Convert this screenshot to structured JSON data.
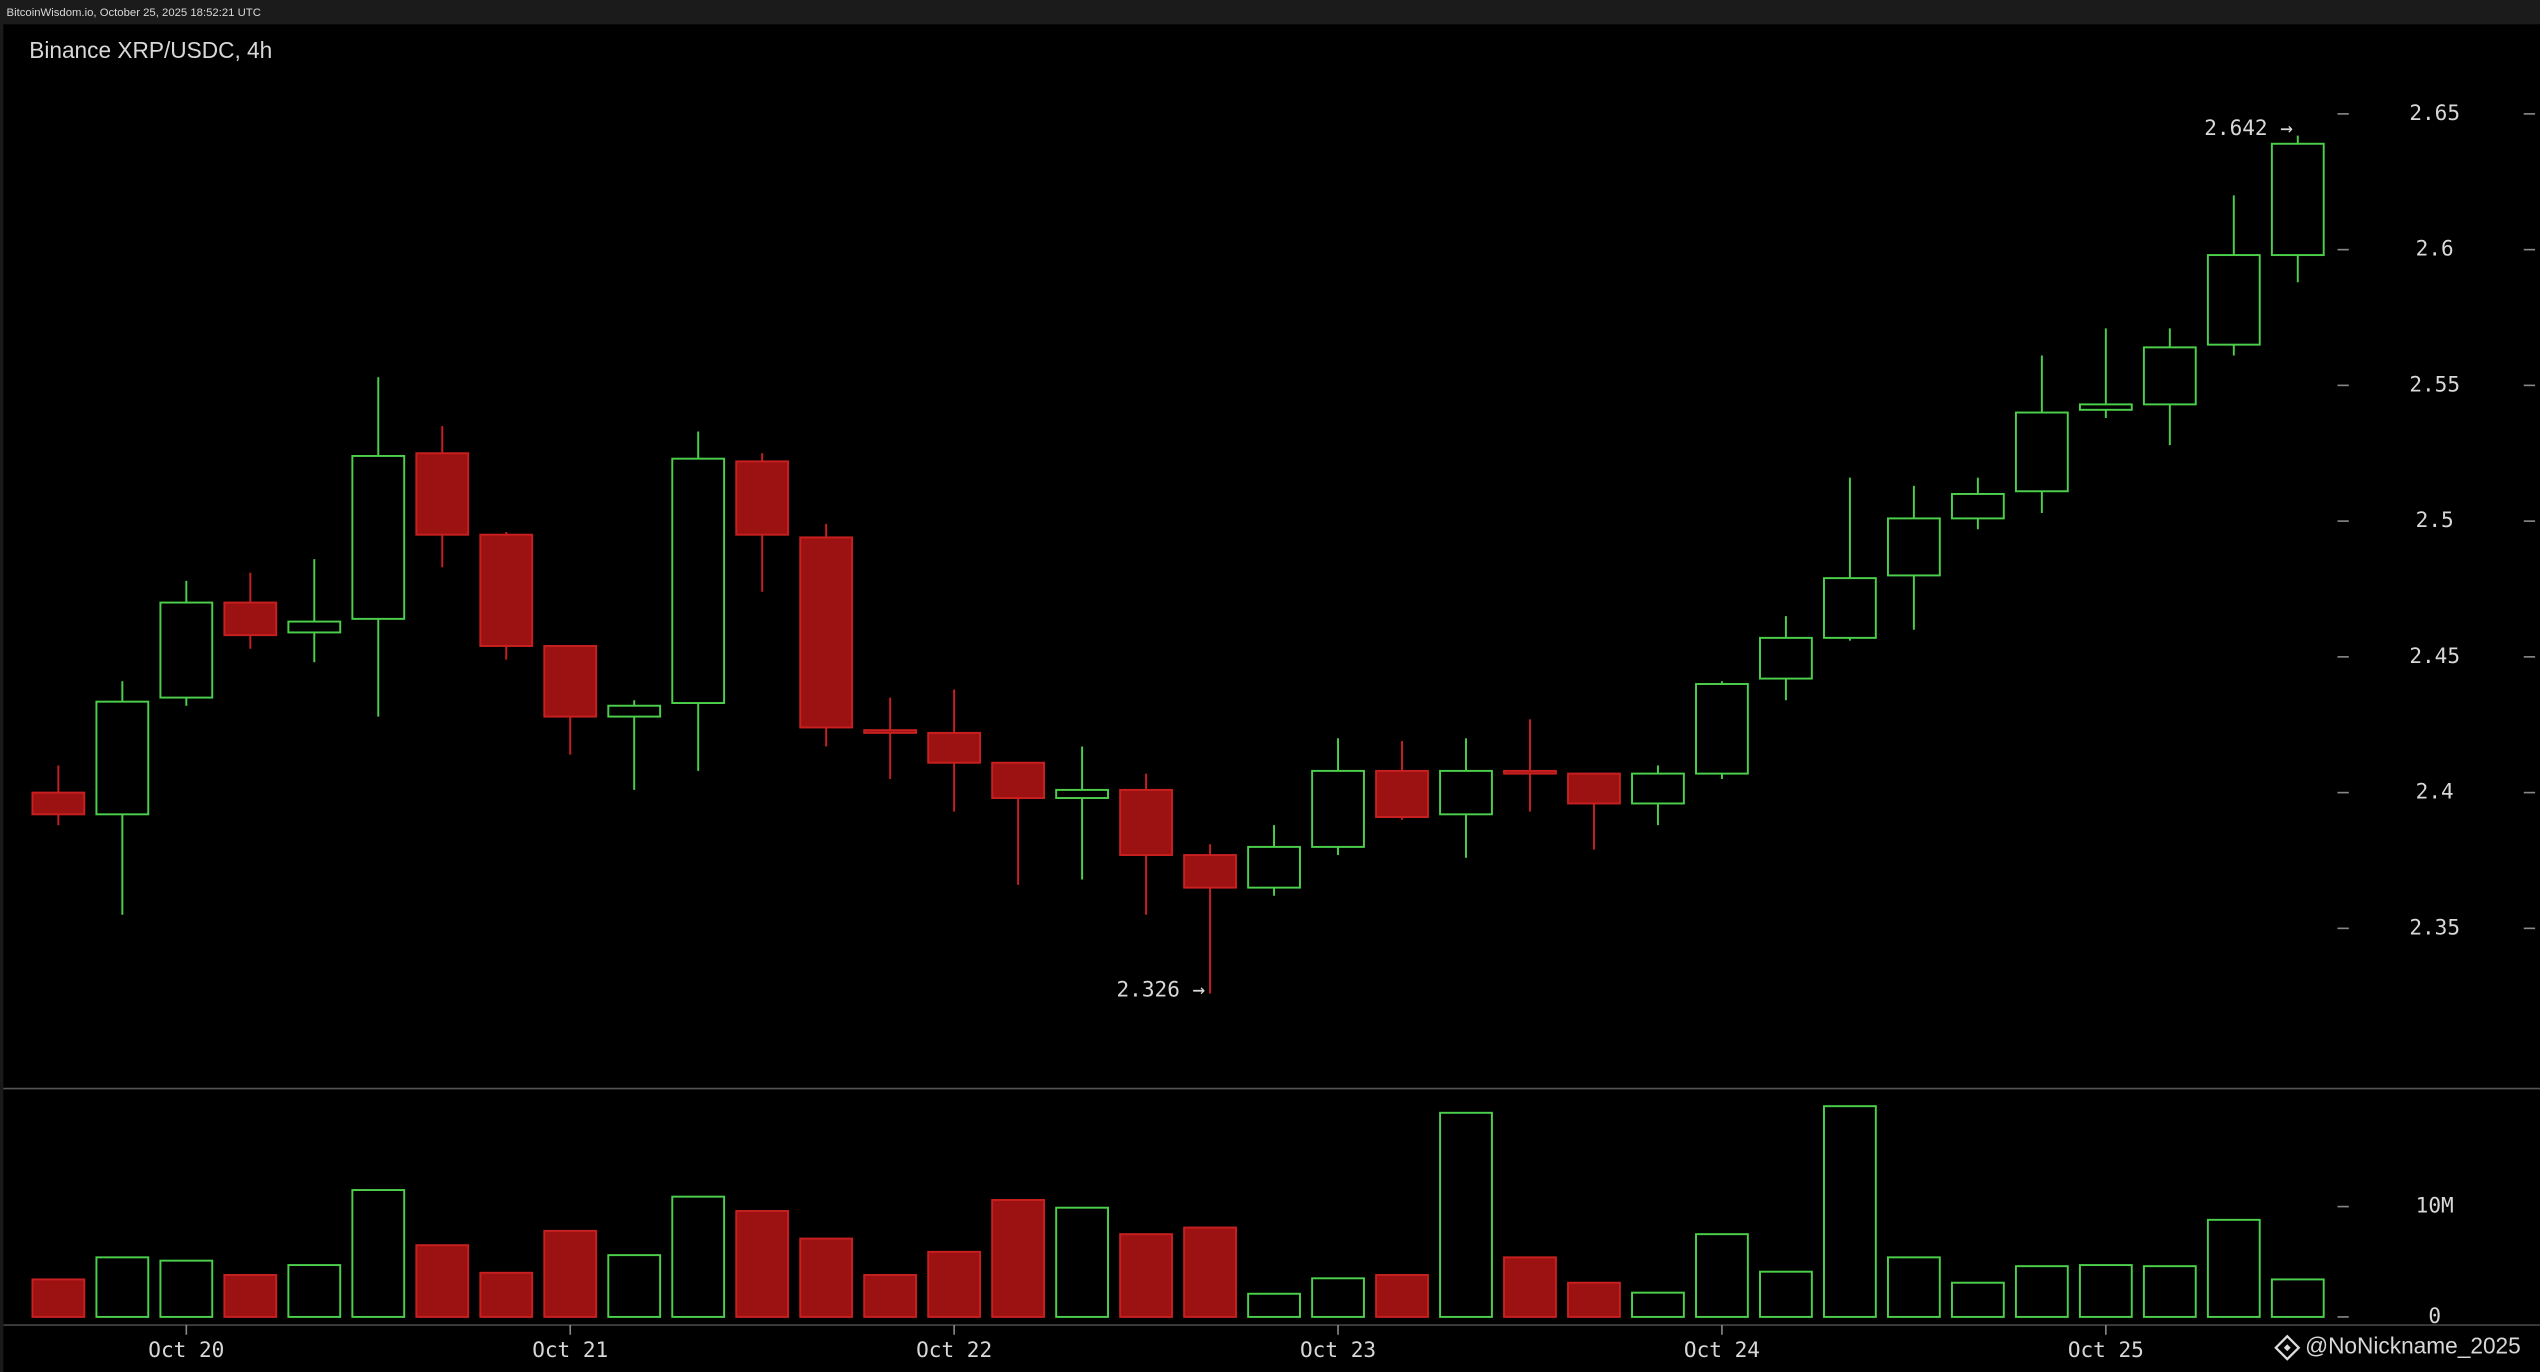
{
  "header": "BitcoinWisdom.io, October 25, 2025 18:52:21 UTC",
  "watermark": "@NoNickname_2025",
  "chart_data": {
    "type": "candlestick",
    "title": "Binance XRP/USDC, 4h",
    "categories": [
      null,
      null,
      "Oct 20",
      null,
      null,
      null,
      null,
      null,
      "Oct 21",
      null,
      null,
      null,
      null,
      null,
      "Oct 22",
      null,
      null,
      null,
      null,
      null,
      "Oct 23",
      null,
      null,
      null,
      null,
      null,
      "Oct 24",
      null,
      null,
      null,
      null,
      null,
      "Oct 25",
      null,
      null,
      null
    ],
    "open": [
      2.4,
      2.392,
      2.435,
      2.47,
      2.459,
      2.464,
      2.525,
      2.495,
      2.454,
      2.428,
      2.433,
      2.522,
      2.494,
      2.423,
      2.422,
      2.411,
      2.398,
      2.401,
      2.377,
      2.365,
      2.38,
      2.408,
      2.392,
      2.408,
      2.407,
      2.396,
      2.407,
      2.442,
      2.457,
      2.48,
      2.501,
      2.511,
      2.541,
      2.543,
      2.565,
      2.598
    ],
    "high": [
      2.41,
      2.441,
      2.478,
      2.481,
      2.486,
      2.553,
      2.535,
      2.496,
      2.454,
      2.434,
      2.533,
      2.525,
      2.499,
      2.435,
      2.438,
      2.411,
      2.417,
      2.407,
      2.381,
      2.388,
      2.42,
      2.419,
      2.42,
      2.427,
      2.407,
      2.41,
      2.441,
      2.465,
      2.516,
      2.513,
      2.516,
      2.561,
      2.571,
      2.571,
      2.62,
      2.642
    ],
    "low": [
      2.388,
      2.355,
      2.432,
      2.453,
      2.448,
      2.428,
      2.483,
      2.449,
      2.414,
      2.401,
      2.408,
      2.474,
      2.417,
      2.405,
      2.393,
      2.366,
      2.368,
      2.355,
      2.326,
      2.362,
      2.377,
      2.39,
      2.376,
      2.393,
      2.379,
      2.388,
      2.405,
      2.434,
      2.456,
      2.46,
      2.497,
      2.503,
      2.538,
      2.528,
      2.561,
      2.588
    ],
    "close": [
      2.392,
      2.4335,
      2.47,
      2.458,
      2.463,
      2.524,
      2.495,
      2.454,
      2.428,
      2.432,
      2.523,
      2.495,
      2.424,
      2.422,
      2.411,
      2.398,
      2.401,
      2.377,
      2.365,
      2.38,
      2.408,
      2.391,
      2.408,
      2.407,
      2.396,
      2.407,
      2.44,
      2.457,
      2.479,
      2.501,
      2.51,
      2.54,
      2.543,
      2.564,
      2.598,
      2.639
    ],
    "ylim": [
      2.291,
      2.683
    ],
    "yticks": [
      2.35,
      2.4,
      2.45,
      2.5,
      2.55,
      2.6,
      2.65
    ],
    "up_color": "#4cd04c",
    "down_color": "#9c1111",
    "down_edge": "#c82020",
    "annotations": [
      {
        "label": "2.642 →",
        "value": 2.642
      },
      {
        "label": "2.326 →",
        "value": 2.326
      }
    ],
    "volume": {
      "values": [
        3400000,
        5400000,
        5100000,
        3800000,
        4700000,
        11500000,
        6500000,
        4000000,
        7800000,
        5600000,
        10900000,
        9600000,
        7100000,
        3800000,
        5900000,
        10600000,
        9900000,
        7500000,
        8100000,
        2100000,
        3500000,
        3800000,
        18500000,
        5400000,
        3100000,
        2200000,
        7500000,
        4100000,
        19100000,
        5400000,
        3100000,
        4600000,
        4700000,
        4600000,
        8800000,
        3400000
      ],
      "ylim": [
        0,
        20700000
      ],
      "yticks": [
        0,
        {
          "value": 10000000,
          "label": "10M"
        }
      ]
    }
  }
}
